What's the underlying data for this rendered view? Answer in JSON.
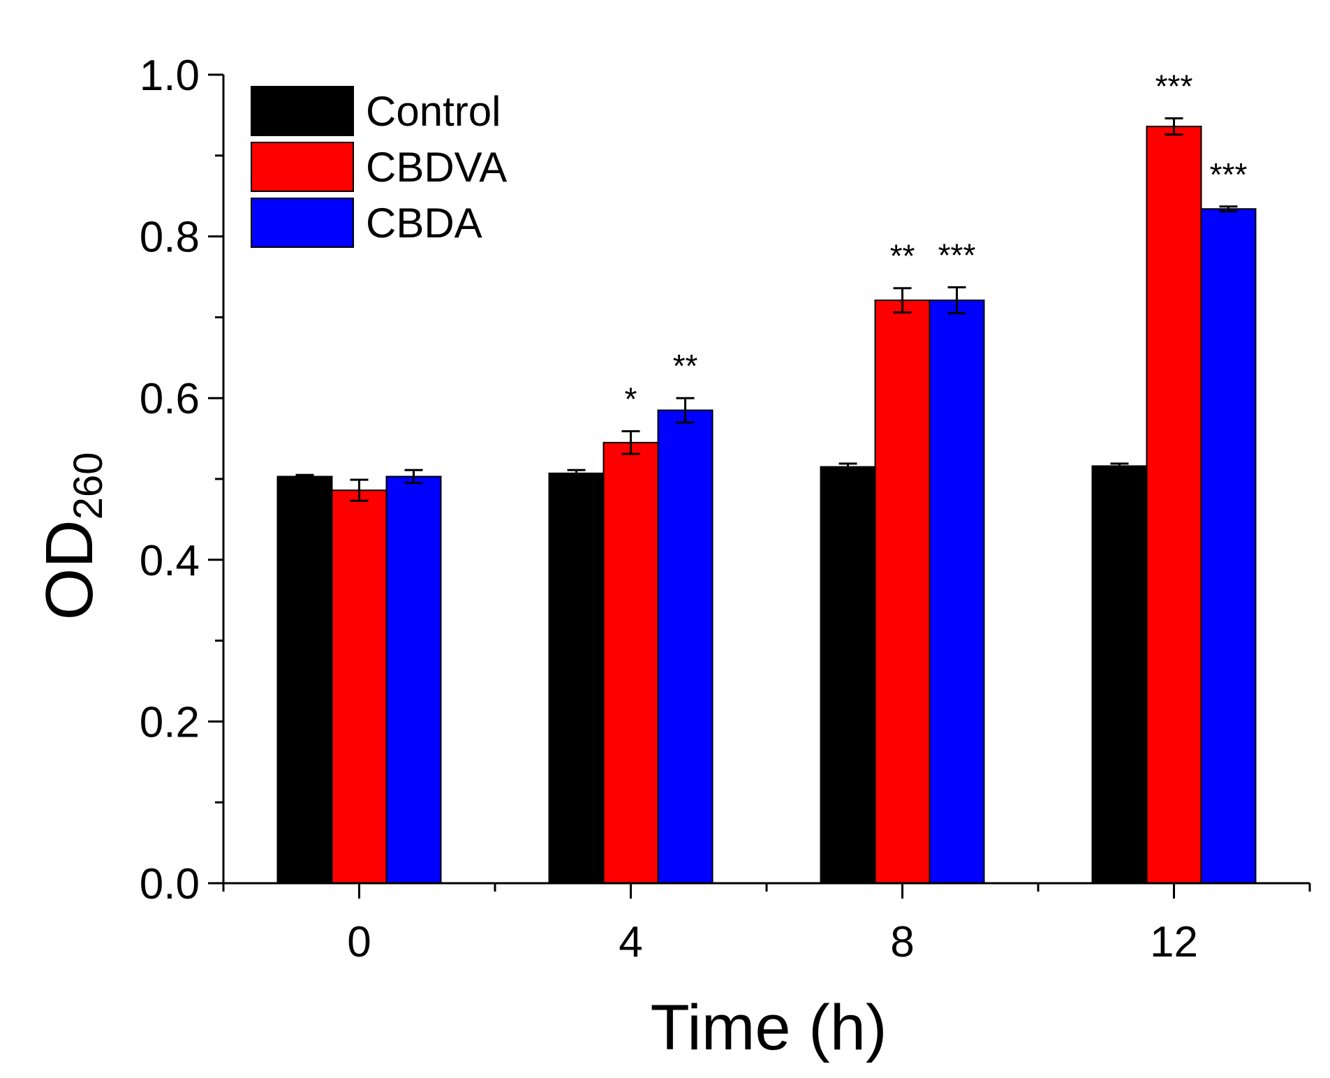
{
  "chart_data": {
    "type": "bar",
    "xlabel": "Time (h)",
    "ylabel": {
      "main": "OD",
      "subscript": "260"
    },
    "ylim": [
      0,
      1.0
    ],
    "y_major_ticks": [
      "0.0",
      "0.2",
      "0.4",
      "0.6",
      "0.8",
      "1.0"
    ],
    "y_minor_step": 0.1,
    "categories": [
      "0",
      "4",
      "8",
      "12"
    ],
    "legend_position": "top-left",
    "series": [
      {
        "name": "Control",
        "color": "#000000",
        "values": [
          0.503,
          0.507,
          0.515,
          0.516
        ],
        "errors": [
          0.002,
          0.004,
          0.004,
          0.003
        ],
        "significance": [
          "",
          "",
          "",
          ""
        ]
      },
      {
        "name": "CBDVA",
        "color": "#ff0000",
        "values": [
          0.486,
          0.545,
          0.721,
          0.936
        ],
        "errors": [
          0.013,
          0.014,
          0.015,
          0.01
        ],
        "significance": [
          "",
          "*",
          "**",
          "***"
        ]
      },
      {
        "name": "CBDA",
        "color": "#0000ff",
        "values": [
          0.503,
          0.585,
          0.721,
          0.834
        ],
        "errors": [
          0.008,
          0.015,
          0.016,
          0.003
        ],
        "significance": [
          "",
          "**",
          "***",
          "***"
        ]
      }
    ]
  }
}
